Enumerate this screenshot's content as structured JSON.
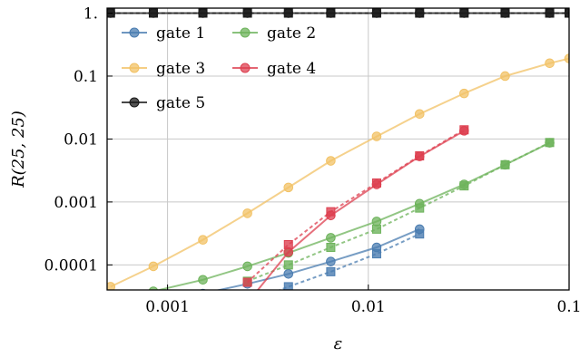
{
  "chart_data": {
    "type": "line",
    "xlabel": "ε",
    "ylabel": "R(25, 25)",
    "xscale": "log",
    "yscale": "log",
    "xlim": [
      0.0005,
      0.1
    ],
    "ylim": [
      4e-05,
      1.2
    ],
    "grid": true,
    "legend_position": "top-left",
    "x_ticks": [
      {
        "value": 0.001,
        "label": "0.001"
      },
      {
        "value": 0.01,
        "label": "0.01"
      },
      {
        "value": 0.1,
        "label": "0.1"
      }
    ],
    "y_ticks": [
      {
        "value": 0.0001,
        "label": "0.0001"
      },
      {
        "value": 0.001,
        "label": "0.001"
      },
      {
        "value": 0.01,
        "label": "0.01"
      },
      {
        "value": 0.1,
        "label": "0.1"
      },
      {
        "value": 1,
        "label": "1."
      }
    ],
    "series": [
      {
        "name": "gate 1",
        "color": "#4a7cb0",
        "solid": {
          "x": [
            0.00085,
            0.0015,
            0.0025,
            0.004,
            0.0065,
            0.011,
            0.018
          ],
          "y": [
            2.5e-05,
            3.5e-05,
            5e-05,
            7.2e-05,
            0.000113,
            0.00019,
            0.00037
          ]
        },
        "dashed": {
          "x": [
            0.0025,
            0.004,
            0.0065,
            0.011,
            0.018
          ],
          "y": [
            2.5e-05,
            4.5e-05,
            7.8e-05,
            0.00015,
            0.00031
          ]
        }
      },
      {
        "name": "gate 2",
        "color": "#6db35b",
        "solid": {
          "x": [
            0.00052,
            0.00085,
            0.0015,
            0.0025,
            0.004,
            0.0065,
            0.011,
            0.018,
            0.03,
            0.048,
            0.08
          ],
          "y": [
            2.5e-05,
            3.8e-05,
            5.8e-05,
            9.5e-05,
            0.000155,
            0.00027,
            0.00049,
            0.00094,
            0.0019,
            0.0039,
            0.0087
          ]
        },
        "dashed": {
          "x": [
            0.0025,
            0.004,
            0.0065,
            0.011,
            0.018,
            0.03,
            0.048,
            0.08
          ],
          "y": [
            5.5e-05,
            0.0001,
            0.00019,
            0.00037,
            0.0008,
            0.0018,
            0.0039,
            0.0088
          ]
        }
      },
      {
        "name": "gate 3",
        "color": "#f2c265",
        "solid": {
          "x": [
            0.00052,
            0.00085,
            0.0015,
            0.0025,
            0.004,
            0.0065,
            0.011,
            0.018,
            0.03,
            0.048,
            0.08,
            0.1
          ],
          "y": [
            4.5e-05,
            9.5e-05,
            0.00025,
            0.00066,
            0.0017,
            0.0045,
            0.011,
            0.025,
            0.053,
            0.1,
            0.16,
            0.19
          ]
        },
        "dashed": null
      },
      {
        "name": "gate 4",
        "color": "#dd4050",
        "solid": {
          "x": [
            0.0025,
            0.004,
            0.0065,
            0.011,
            0.018,
            0.03
          ],
          "y": [
            2.5e-05,
            0.00016,
            0.00061,
            0.0019,
            0.0053,
            0.0135
          ]
        },
        "dashed": {
          "x": [
            0.0025,
            0.004,
            0.0065,
            0.011,
            0.018,
            0.03
          ],
          "y": [
            5.3e-05,
            0.00021,
            0.0007,
            0.002,
            0.0054,
            0.014
          ]
        }
      },
      {
        "name": "gate 5",
        "color": "#1a1a1a",
        "solid": {
          "x": [
            0.00052,
            0.00085,
            0.0015,
            0.0025,
            0.004,
            0.0065,
            0.011,
            0.018,
            0.03,
            0.048,
            0.08,
            0.1
          ],
          "y": [
            1,
            1,
            1,
            1,
            1,
            1,
            1,
            1,
            1,
            1,
            1,
            1
          ]
        },
        "dashed": {
          "x": [
            0.00052,
            0.00085,
            0.0015,
            0.0025,
            0.004,
            0.0065,
            0.011,
            0.018,
            0.03,
            0.048,
            0.08,
            0.1
          ],
          "y": [
            1,
            1,
            1,
            1,
            1,
            1,
            1,
            1,
            1,
            1,
            1,
            1
          ]
        }
      }
    ]
  }
}
